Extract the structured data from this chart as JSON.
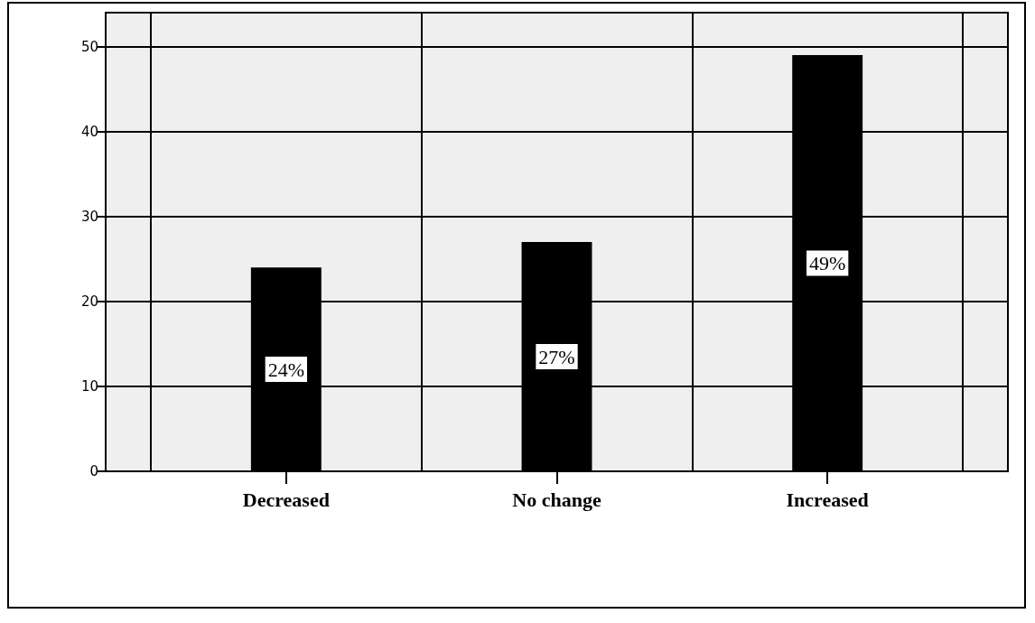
{
  "chart_data": {
    "type": "bar",
    "categories": [
      "Decreased",
      "No change",
      "Increased"
    ],
    "values": [
      24,
      27,
      49
    ],
    "value_labels": [
      "24%",
      "27%",
      "49%"
    ],
    "color": "#000000",
    "ylim": [
      0,
      54
    ],
    "yticks": [
      0,
      10,
      20,
      30,
      40,
      50
    ],
    "grid": true
  }
}
